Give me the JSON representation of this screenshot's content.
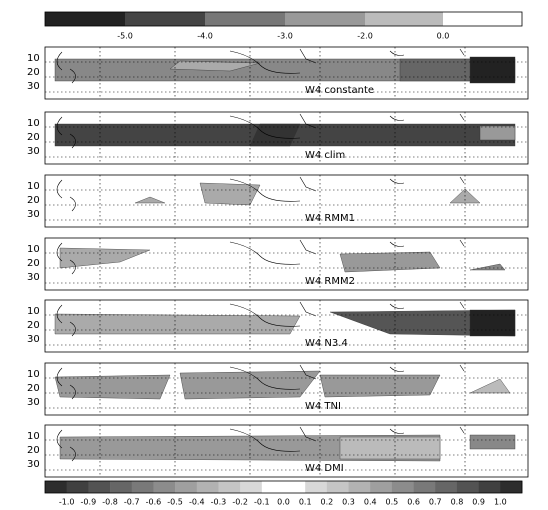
{
  "top_colorbar": {
    "labels": [
      "-5.0",
      "-4.0",
      "-3.0",
      "-2.0",
      "0.0"
    ]
  },
  "map_yticks": [
    10,
    20,
    30
  ],
  "panels": [
    {
      "label": "W4 constante"
    },
    {
      "label": "W4 clim"
    },
    {
      "label": "W4 RMM1"
    },
    {
      "label": "W4 RMM2"
    },
    {
      "label": "W4 N3.4"
    },
    {
      "label": "W4 TNI"
    },
    {
      "label": "W4 DMI"
    }
  ],
  "bottom_colorbar": {
    "labels": [
      "-1.0",
      "-0.9",
      "-0.8",
      "-0.7",
      "-0.6",
      "-0.5",
      "-0.4",
      "-0.3",
      "-0.2",
      "-0.1",
      "0.0",
      "0.1",
      "0.2",
      "0.3",
      "0.4",
      "0.5",
      "0.6",
      "0.7",
      "0.8",
      "0.9",
      "1.0"
    ]
  }
}
